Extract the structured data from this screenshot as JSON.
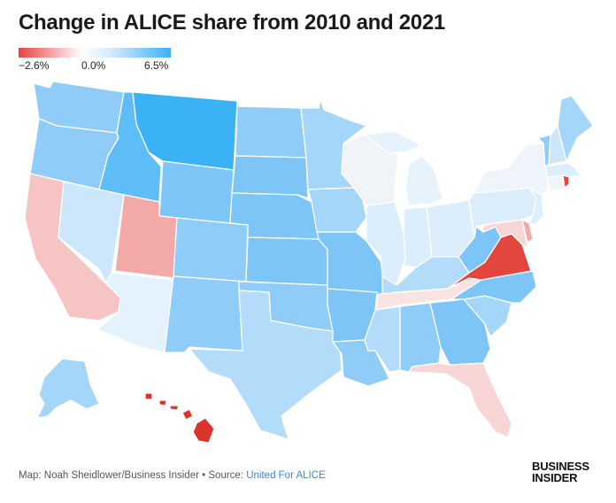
{
  "title": "Change in ALICE share from 2010 and 2021",
  "legend": {
    "min_label": "−2.6%",
    "mid_label": "0.0%",
    "max_label": "6.5%",
    "min_color": "#e2463f",
    "mid_color": "#ffffff",
    "max_color": "#3cb2f6"
  },
  "footer": {
    "map_prefix": "Map:",
    "credit": "Noah Sheidlower/Business Insider",
    "separator": "•",
    "source_prefix": "Source:",
    "source_link": "United For ALICE"
  },
  "logo": {
    "line1": "BUSINESS",
    "line2": "INSIDER"
  },
  "states": [
    {
      "id": "WA",
      "color": "#8fcdf8"
    },
    {
      "id": "OR",
      "color": "#8fcdf8"
    },
    {
      "id": "CA",
      "color": "#f7c4c4"
    },
    {
      "id": "NV",
      "color": "#cce7fb"
    },
    {
      "id": "ID",
      "color": "#5ebcf6"
    },
    {
      "id": "MT",
      "color": "#3cb2f6"
    },
    {
      "id": "WY",
      "color": "#7dc5f7"
    },
    {
      "id": "UT",
      "color": "#f4a9a9"
    },
    {
      "id": "AZ",
      "color": "#e4f2fd"
    },
    {
      "id": "CO",
      "color": "#8fcdf8"
    },
    {
      "id": "NM",
      "color": "#8fcdf8"
    },
    {
      "id": "ND",
      "color": "#8fcdf8"
    },
    {
      "id": "SD",
      "color": "#7dc5f7"
    },
    {
      "id": "NE",
      "color": "#7dc5f7"
    },
    {
      "id": "KS",
      "color": "#7dc5f7"
    },
    {
      "id": "OK",
      "color": "#8fcdf8"
    },
    {
      "id": "TX",
      "color": "#b2dcfa"
    },
    {
      "id": "MN",
      "color": "#a3d6f9"
    },
    {
      "id": "IA",
      "color": "#a3d6f9"
    },
    {
      "id": "MO",
      "color": "#7dc5f7"
    },
    {
      "id": "AR",
      "color": "#7dc5f7"
    },
    {
      "id": "LA",
      "color": "#8fcdf8"
    },
    {
      "id": "WI",
      "color": "#f1f4f7"
    },
    {
      "id": "IL",
      "color": "#dceefb"
    },
    {
      "id": "MI",
      "color": "#e6f2fc"
    },
    {
      "id": "IN",
      "color": "#dceefb"
    },
    {
      "id": "OH",
      "color": "#dceefb"
    },
    {
      "id": "KY",
      "color": "#b2dcfa"
    },
    {
      "id": "TN",
      "color": "#fbe3e3"
    },
    {
      "id": "MS",
      "color": "#b2dcfa"
    },
    {
      "id": "AL",
      "color": "#8fcdf8"
    },
    {
      "id": "GA",
      "color": "#7dc5f7"
    },
    {
      "id": "FL",
      "color": "#f9d6d6"
    },
    {
      "id": "SC",
      "color": "#a3d6f9"
    },
    {
      "id": "NC",
      "color": "#7dc5f7"
    },
    {
      "id": "VA",
      "color": "#e2463f"
    },
    {
      "id": "WV",
      "color": "#7dc5f7"
    },
    {
      "id": "MD",
      "color": "#f9d6d6"
    },
    {
      "id": "DE",
      "color": "#f4a9a9"
    },
    {
      "id": "PA",
      "color": "#dceefb"
    },
    {
      "id": "NJ",
      "color": "#dceefb"
    },
    {
      "id": "NY",
      "color": "#eef4fa"
    },
    {
      "id": "CT",
      "color": "#eef4fa"
    },
    {
      "id": "RI",
      "color": "#e2463f"
    },
    {
      "id": "MA",
      "color": "#dceefb"
    },
    {
      "id": "VT",
      "color": "#8fcdf8"
    },
    {
      "id": "NH",
      "color": "#cce7fb"
    },
    {
      "id": "ME",
      "color": "#a3d6f9"
    },
    {
      "id": "AK",
      "color": "#a3d6f9"
    },
    {
      "id": "HI",
      "color": "#d9352e"
    }
  ]
}
